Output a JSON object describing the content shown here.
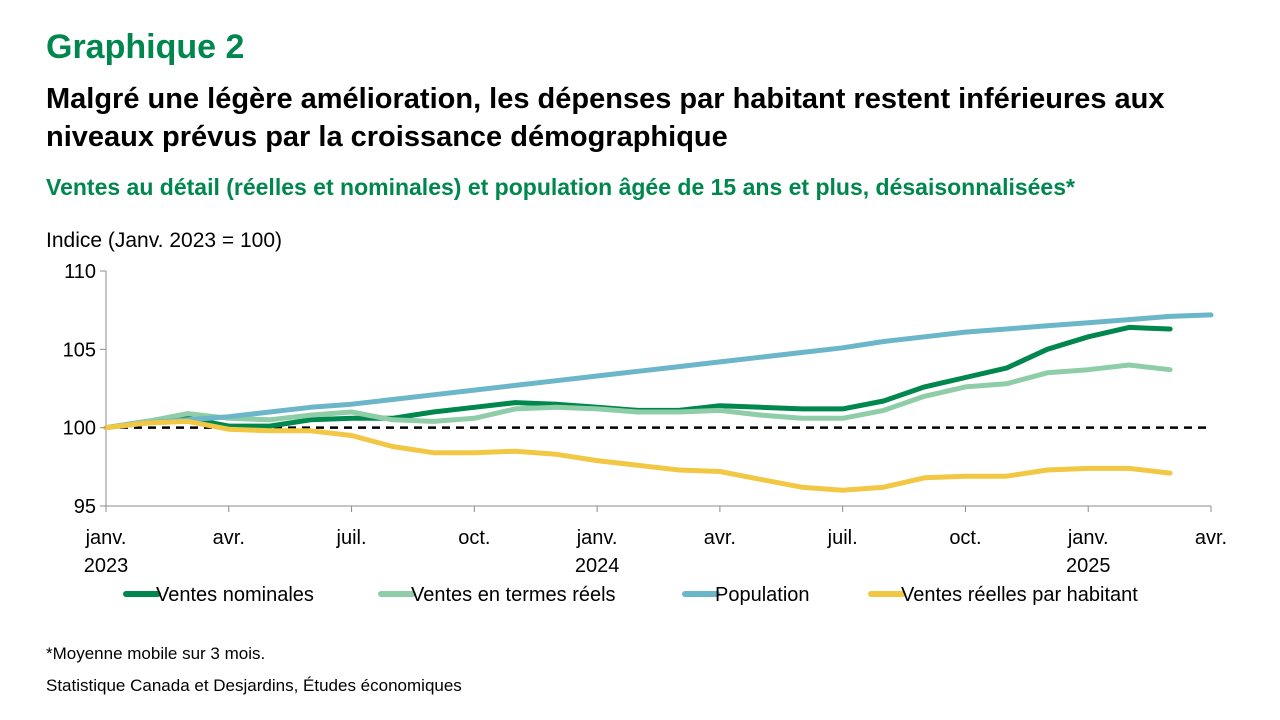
{
  "header": {
    "graph_label": "Graphique 2",
    "title": "Malgré une légère amélioration, les dépenses par habitant restent inférieures aux niveaux prévus par la croissance démographique",
    "subtitle": "Ventes au détail (réelles et nominales) et population âgée de 15 ans et plus, désaisonnalisées*"
  },
  "chart_data": {
    "type": "line",
    "ylabel": "Indice (Janv. 2023 = 100)",
    "ylim": [
      95,
      110
    ],
    "yticks": [
      95,
      100,
      105,
      110
    ],
    "x_start": "2023-01",
    "x_end": "2025-04",
    "xticks": [
      {
        "date": "2023-01",
        "label": "janv.",
        "year": "2023"
      },
      {
        "date": "2023-04",
        "label": "avr.",
        "year": ""
      },
      {
        "date": "2023-07",
        "label": "juil.",
        "year": ""
      },
      {
        "date": "2023-10",
        "label": "oct.",
        "year": ""
      },
      {
        "date": "2024-01",
        "label": "janv.",
        "year": "2024"
      },
      {
        "date": "2024-04",
        "label": "avr.",
        "year": ""
      },
      {
        "date": "2024-07",
        "label": "juil.",
        "year": ""
      },
      {
        "date": "2024-10",
        "label": "oct.",
        "year": ""
      },
      {
        "date": "2025-01",
        "label": "janv.",
        "year": "2025"
      },
      {
        "date": "2025-04",
        "label": "avr.",
        "year": ""
      }
    ],
    "reference_line": 100,
    "x": [
      "2023-01",
      "2023-02",
      "2023-03",
      "2023-04",
      "2023-05",
      "2023-06",
      "2023-07",
      "2023-08",
      "2023-09",
      "2023-10",
      "2023-11",
      "2023-12",
      "2024-01",
      "2024-02",
      "2024-03",
      "2024-04",
      "2024-05",
      "2024-06",
      "2024-07",
      "2024-08",
      "2024-09",
      "2024-10",
      "2024-11",
      "2024-12",
      "2025-01",
      "2025-02",
      "2025-03",
      "2025-04"
    ],
    "series": [
      {
        "name": "Ventes nominales",
        "color": "#00874E",
        "values": [
          100.0,
          100.4,
          100.6,
          100.1,
          100.1,
          100.5,
          100.6,
          100.6,
          101.0,
          101.3,
          101.6,
          101.5,
          101.3,
          101.1,
          101.1,
          101.4,
          101.3,
          101.2,
          101.2,
          101.7,
          102.6,
          103.2,
          103.8,
          105.0,
          105.8,
          106.4,
          106.3,
          null
        ]
      },
      {
        "name": "Ventes en termes réels",
        "color": "#8FCDA8",
        "values": [
          100.0,
          100.4,
          100.9,
          100.6,
          100.5,
          100.8,
          101.0,
          100.5,
          100.4,
          100.6,
          101.2,
          101.3,
          101.2,
          101.0,
          101.0,
          101.1,
          100.8,
          100.6,
          100.6,
          101.1,
          102.0,
          102.6,
          102.8,
          103.5,
          103.7,
          104.0,
          103.7,
          null
        ]
      },
      {
        "name": "Population",
        "color": "#6CB6CA",
        "values": [
          100.0,
          100.3,
          100.5,
          100.7,
          101.0,
          101.3,
          101.5,
          101.8,
          102.1,
          102.4,
          102.7,
          103.0,
          103.3,
          103.6,
          103.9,
          104.2,
          104.5,
          104.8,
          105.1,
          105.5,
          105.8,
          106.1,
          106.3,
          106.5,
          106.7,
          106.9,
          107.1,
          107.2
        ]
      },
      {
        "name": "Ventes réelles par habitant",
        "color": "#F2C744",
        "values": [
          100.0,
          100.3,
          100.4,
          99.9,
          99.8,
          99.8,
          99.5,
          98.8,
          98.4,
          98.4,
          98.5,
          98.3,
          97.9,
          97.6,
          97.3,
          97.2,
          96.7,
          96.2,
          96.0,
          96.2,
          96.8,
          96.9,
          96.9,
          97.3,
          97.4,
          97.4,
          97.1,
          null
        ]
      }
    ],
    "legend_position": "bottom"
  },
  "footer": {
    "footnote": "*Moyenne mobile sur 3 mois.",
    "source": "Statistique Canada et Desjardins, Études économiques"
  }
}
